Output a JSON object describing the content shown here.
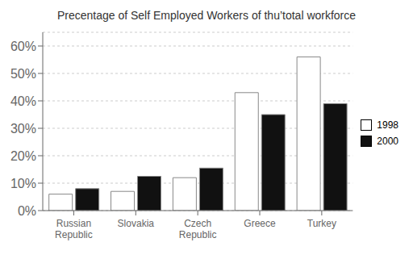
{
  "chart_data": {
    "type": "bar",
    "title": "Precentage of Self Employed Workers of thu’total workforce",
    "categories": [
      "Russian\nRepublic",
      "Slovakia",
      "Czech\nRepublic",
      "Greece",
      "Turkey"
    ],
    "series": [
      {
        "name": "1998",
        "color": "#ffffff",
        "values": [
          6,
          7,
          12,
          43,
          56
        ]
      },
      {
        "name": "2000",
        "color": "#111111",
        "values": [
          8,
          12.5,
          15.5,
          35,
          39
        ]
      }
    ],
    "ylim": [
      0,
      65
    ],
    "yticks": [
      {
        "value": 0,
        "label": "0%"
      },
      {
        "value": 10,
        "label": "10%"
      },
      {
        "value": 20,
        "label": "20%"
      },
      {
        "value": 30,
        "label": "30%"
      },
      {
        "value": 40,
        "label": "40%"
      },
      {
        "value": 50,
        "label": "50%"
      },
      {
        "value": 60,
        "label": "60%"
      }
    ],
    "grid": true,
    "legend": "right"
  }
}
